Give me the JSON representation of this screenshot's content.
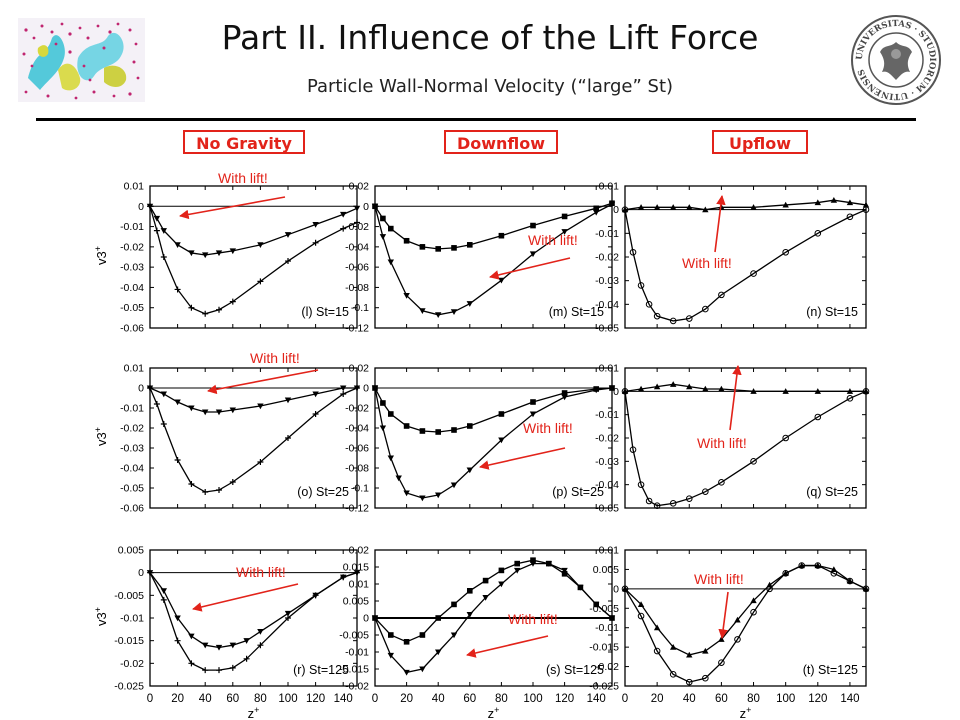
{
  "header": {
    "title": "Part II. Influence of the Lift Force",
    "subtitle": "Particle Wall-Normal Velocity (“large” St)"
  },
  "seal_text": "UNIVERSITAS · STUDIORUM · UTINENSIS",
  "columns": [
    "No Gravity",
    "Downflow",
    "Upflow"
  ],
  "colors": {
    "annotation": "#e2231a",
    "ink": "#000000"
  },
  "ylabel": "v3+",
  "xlabel": "z+",
  "annotation_text": "With lift!",
  "chart_data": [
    {
      "type": "line",
      "panel": "(l) St=15",
      "xlim": [
        0,
        150
      ],
      "xticks": [],
      "ylim": [
        -0.06,
        0.01
      ],
      "yticks": [
        "0.01",
        "0",
        "-0.01",
        "-0.02",
        "-0.03",
        "-0.04",
        "-0.05",
        "-0.06"
      ],
      "series": [
        {
          "marker": "tri-down",
          "x": [
            0,
            5,
            10,
            20,
            30,
            40,
            50,
            60,
            80,
            100,
            120,
            140,
            150
          ],
          "y": [
            0,
            -0.006,
            -0.012,
            -0.019,
            -0.023,
            -0.024,
            -0.023,
            -0.022,
            -0.019,
            -0.014,
            -0.009,
            -0.004,
            -0.001
          ]
        },
        {
          "marker": "plus",
          "x": [
            0,
            5,
            10,
            20,
            30,
            40,
            50,
            60,
            80,
            100,
            120,
            140,
            150
          ],
          "y": [
            0,
            -0.012,
            -0.025,
            -0.041,
            -0.05,
            -0.053,
            -0.051,
            -0.047,
            -0.037,
            -0.027,
            -0.018,
            -0.011,
            -0.008
          ]
        }
      ]
    },
    {
      "type": "line",
      "panel": "(m) St=15",
      "xlim": [
        0,
        150
      ],
      "xticks": [],
      "ylim": [
        -0.12,
        0.02
      ],
      "yticks": [
        "0.02",
        "0",
        "-0.02",
        "-0.04",
        "-0.06",
        "-0.08",
        "-0.1",
        "-0.12"
      ],
      "series": [
        {
          "marker": "square",
          "x": [
            0,
            5,
            10,
            20,
            30,
            40,
            50,
            60,
            80,
            100,
            120,
            140,
            150
          ],
          "y": [
            0,
            -0.012,
            -0.022,
            -0.034,
            -0.04,
            -0.042,
            -0.041,
            -0.038,
            -0.029,
            -0.019,
            -0.01,
            -0.002,
            0.003
          ]
        },
        {
          "marker": "tri-down",
          "x": [
            0,
            5,
            10,
            20,
            30,
            40,
            50,
            60,
            80,
            100,
            120,
            140,
            150
          ],
          "y": [
            0,
            -0.03,
            -0.055,
            -0.088,
            -0.103,
            -0.107,
            -0.104,
            -0.096,
            -0.073,
            -0.047,
            -0.025,
            -0.006,
            0.002
          ]
        }
      ]
    },
    {
      "type": "line",
      "panel": "(n) St=15",
      "xlim": [
        0,
        150
      ],
      "xticks": [],
      "ylim": [
        -0.05,
        0.01
      ],
      "yticks": [
        "0.01",
        "0",
        "-0.01",
        "-0.02",
        "-0.03",
        "-0.04",
        "-0.05"
      ],
      "series": [
        {
          "marker": "triangle",
          "x": [
            0,
            10,
            20,
            30,
            40,
            50,
            60,
            80,
            100,
            120,
            130,
            140,
            150
          ],
          "y": [
            0,
            0.001,
            0.001,
            0.001,
            0.001,
            0,
            0.001,
            0.001,
            0.002,
            0.003,
            0.004,
            0.003,
            0.002
          ]
        },
        {
          "marker": "circle",
          "x": [
            0,
            5,
            10,
            15,
            20,
            30,
            40,
            50,
            60,
            80,
            100,
            120,
            140,
            150
          ],
          "y": [
            0,
            -0.018,
            -0.032,
            -0.04,
            -0.045,
            -0.047,
            -0.046,
            -0.042,
            -0.036,
            -0.027,
            -0.018,
            -0.01,
            -0.003,
            0
          ]
        }
      ]
    },
    {
      "type": "line",
      "panel": "(o) St=25",
      "xlim": [
        0,
        150
      ],
      "xticks": [],
      "ylim": [
        -0.06,
        0.01
      ],
      "yticks": [
        "0.01",
        "0",
        "-0.01",
        "-0.02",
        "-0.03",
        "-0.04",
        "-0.05",
        "-0.06"
      ],
      "series": [
        {
          "marker": "tri-down",
          "x": [
            0,
            10,
            20,
            30,
            40,
            50,
            60,
            80,
            100,
            120,
            140,
            150
          ],
          "y": [
            0,
            -0.003,
            -0.007,
            -0.01,
            -0.012,
            -0.012,
            -0.011,
            -0.009,
            -0.006,
            -0.003,
            0,
            0
          ]
        },
        {
          "marker": "plus",
          "x": [
            0,
            5,
            10,
            20,
            30,
            40,
            50,
            60,
            80,
            100,
            120,
            140,
            150
          ],
          "y": [
            0,
            -0.008,
            -0.018,
            -0.036,
            -0.048,
            -0.052,
            -0.051,
            -0.047,
            -0.037,
            -0.025,
            -0.013,
            -0.003,
            0
          ]
        }
      ]
    },
    {
      "type": "line",
      "panel": "(p) St=25",
      "xlim": [
        0,
        150
      ],
      "xticks": [],
      "ylim": [
        -0.12,
        0.02
      ],
      "yticks": [
        "0.02",
        "0",
        "-0.02",
        "-0.04",
        "-0.06",
        "-0.08",
        "-0.1",
        "-0.12"
      ],
      "series": [
        {
          "marker": "square",
          "x": [
            0,
            5,
            10,
            20,
            30,
            40,
            50,
            60,
            80,
            100,
            120,
            140,
            150
          ],
          "y": [
            0,
            -0.015,
            -0.026,
            -0.038,
            -0.043,
            -0.044,
            -0.042,
            -0.038,
            -0.026,
            -0.014,
            -0.005,
            -0.001,
            0
          ]
        },
        {
          "marker": "tri-down",
          "x": [
            0,
            5,
            10,
            15,
            20,
            30,
            40,
            50,
            60,
            80,
            100,
            120,
            140,
            150
          ],
          "y": [
            0,
            -0.04,
            -0.07,
            -0.09,
            -0.105,
            -0.11,
            -0.107,
            -0.097,
            -0.082,
            -0.052,
            -0.026,
            -0.009,
            -0.002,
            0
          ]
        }
      ]
    },
    {
      "type": "line",
      "panel": "(q) St=25",
      "xlim": [
        0,
        150
      ],
      "xticks": [],
      "ylim": [
        -0.05,
        0.01
      ],
      "yticks": [
        "0.01",
        "0",
        "-0.01",
        "-0.02",
        "-0.03",
        "-0.04",
        "-0.05"
      ],
      "series": [
        {
          "marker": "triangle",
          "x": [
            0,
            10,
            20,
            30,
            40,
            50,
            60,
            80,
            100,
            120,
            140,
            150
          ],
          "y": [
            0,
            0.001,
            0.002,
            0.003,
            0.002,
            0.001,
            0.001,
            0,
            0,
            0,
            0,
            0
          ]
        },
        {
          "marker": "circle",
          "x": [
            0,
            5,
            10,
            15,
            20,
            30,
            40,
            50,
            60,
            80,
            100,
            120,
            140,
            150
          ],
          "y": [
            0,
            -0.025,
            -0.04,
            -0.047,
            -0.049,
            -0.048,
            -0.046,
            -0.043,
            -0.039,
            -0.03,
            -0.02,
            -0.011,
            -0.003,
            0
          ]
        }
      ]
    },
    {
      "type": "line",
      "panel": "(r) St=125",
      "xlim": [
        0,
        150
      ],
      "xticks": [
        "0",
        "20",
        "40",
        "60",
        "80",
        "100",
        "120",
        "140"
      ],
      "ylim": [
        -0.025,
        0.005
      ],
      "yticks": [
        "0.005",
        "0",
        "-0.005",
        "-0.01",
        "-0.015",
        "-0.02",
        "-0.025"
      ],
      "series": [
        {
          "marker": "tri-down",
          "x": [
            0,
            10,
            20,
            30,
            40,
            50,
            60,
            70,
            80,
            100,
            120,
            140,
            150
          ],
          "y": [
            0,
            -0.004,
            -0.01,
            -0.014,
            -0.016,
            -0.0165,
            -0.016,
            -0.015,
            -0.013,
            -0.009,
            -0.005,
            -0.001,
            0
          ]
        },
        {
          "marker": "plus",
          "x": [
            0,
            10,
            20,
            30,
            40,
            50,
            60,
            70,
            80,
            100,
            120,
            140,
            150
          ],
          "y": [
            0,
            -0.006,
            -0.015,
            -0.02,
            -0.0215,
            -0.0215,
            -0.021,
            -0.019,
            -0.016,
            -0.01,
            -0.005,
            -0.001,
            0
          ]
        }
      ]
    },
    {
      "type": "line",
      "panel": "(s) St=125",
      "xlim": [
        0,
        150
      ],
      "xticks": [
        "0",
        "20",
        "40",
        "60",
        "80",
        "100",
        "120",
        "140"
      ],
      "ylim": [
        -0.02,
        0.02
      ],
      "yticks": [
        "0.02",
        "0.015",
        "0.01",
        "0.005",
        "0",
        "-0.005",
        "-0.01",
        "-0.015",
        "-0.02"
      ],
      "series": [
        {
          "marker": "square",
          "x": [
            0,
            10,
            20,
            30,
            40,
            50,
            60,
            70,
            80,
            90,
            100,
            110,
            120,
            130,
            140,
            150
          ],
          "y": [
            0,
            -0.005,
            -0.007,
            -0.005,
            0,
            0.004,
            0.008,
            0.011,
            0.014,
            0.016,
            0.017,
            0.016,
            0.013,
            0.009,
            0.004,
            0
          ]
        },
        {
          "marker": "tri-down",
          "x": [
            0,
            10,
            20,
            30,
            40,
            50,
            60,
            70,
            80,
            90,
            100,
            110,
            120,
            130,
            140,
            150
          ],
          "y": [
            0,
            -0.011,
            -0.016,
            -0.015,
            -0.01,
            -0.005,
            0.001,
            0.006,
            0.01,
            0.014,
            0.016,
            0.016,
            0.014,
            0.009,
            0.004,
            0
          ]
        }
      ]
    },
    {
      "type": "line",
      "panel": "(t) St=125",
      "xlim": [
        0,
        150
      ],
      "xticks": [
        "0",
        "20",
        "40",
        "60",
        "80",
        "100",
        "120",
        "140"
      ],
      "ylim": [
        -0.025,
        0.01
      ],
      "yticks": [
        "0.01",
        "0.005",
        "0",
        "-0.005",
        "-0.01",
        "-0.015",
        "-0.02",
        "-0.025"
      ],
      "series": [
        {
          "marker": "triangle",
          "x": [
            0,
            10,
            20,
            30,
            40,
            50,
            60,
            70,
            80,
            90,
            100,
            110,
            120,
            130,
            140,
            150
          ],
          "y": [
            0,
            -0.004,
            -0.01,
            -0.015,
            -0.017,
            -0.016,
            -0.013,
            -0.008,
            -0.003,
            0.001,
            0.004,
            0.006,
            0.006,
            0.005,
            0.002,
            0
          ]
        },
        {
          "marker": "circle",
          "x": [
            0,
            10,
            20,
            30,
            40,
            50,
            60,
            70,
            80,
            90,
            100,
            110,
            120,
            130,
            140,
            150
          ],
          "y": [
            0,
            -0.007,
            -0.016,
            -0.022,
            -0.024,
            -0.023,
            -0.019,
            -0.013,
            -0.006,
            0,
            0.004,
            0.006,
            0.006,
            0.004,
            0.002,
            0
          ]
        }
      ]
    }
  ]
}
